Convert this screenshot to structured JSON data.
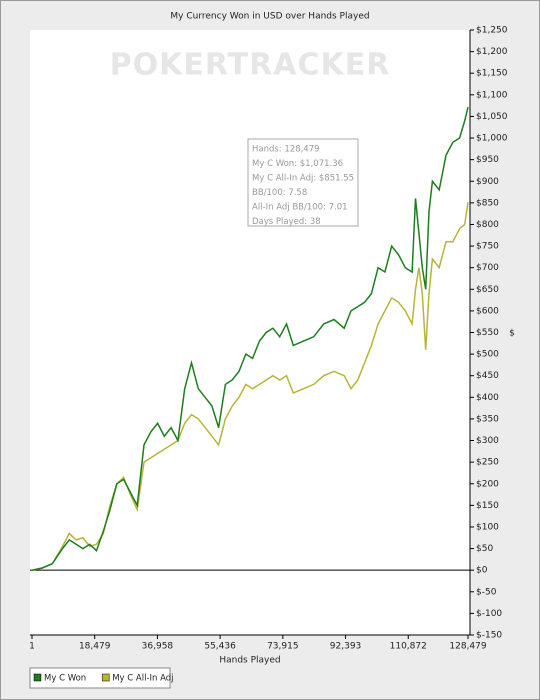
{
  "chart_data": {
    "type": "line",
    "title": "My Currency Won in USD over Hands Played",
    "watermark": "POKERTRACKER",
    "xlabel": "Hands Played",
    "ylabel": "$",
    "x": [
      1,
      3000,
      6000,
      9000,
      11000,
      13000,
      15000,
      17000,
      19000,
      21000,
      23000,
      25000,
      27000,
      29000,
      31000,
      33000,
      35000,
      37000,
      39000,
      41000,
      43000,
      45000,
      47000,
      49000,
      51000,
      53000,
      55000,
      57000,
      59000,
      61000,
      63000,
      65000,
      67000,
      69000,
      71000,
      73000,
      75000,
      77000,
      80000,
      83000,
      86000,
      89000,
      92000,
      94000,
      96000,
      98000,
      100000,
      102000,
      104000,
      106000,
      108000,
      110000,
      112000,
      113000,
      114000,
      115000,
      116000,
      117000,
      118000,
      120000,
      122000,
      124000,
      126000,
      127500,
      128479
    ],
    "series": [
      {
        "name": "My C Won",
        "color": "#1e7d1e",
        "values": [
          0,
          5,
          15,
          50,
          70,
          60,
          50,
          60,
          45,
          90,
          140,
          200,
          210,
          180,
          150,
          290,
          320,
          340,
          310,
          330,
          300,
          420,
          480,
          420,
          400,
          380,
          330,
          430,
          440,
          460,
          500,
          490,
          530,
          550,
          560,
          540,
          570,
          520,
          530,
          540,
          570,
          580,
          560,
          600,
          610,
          620,
          640,
          700,
          690,
          750,
          730,
          700,
          690,
          860,
          780,
          700,
          650,
          830,
          900,
          880,
          960,
          990,
          1000,
          1040,
          1071.36
        ]
      },
      {
        "name": "My C All-In Adj",
        "color": "#b8b43a",
        "values": [
          0,
          5,
          15,
          55,
          85,
          70,
          75,
          55,
          60,
          85,
          150,
          200,
          215,
          175,
          140,
          250,
          260,
          270,
          280,
          290,
          300,
          340,
          360,
          350,
          330,
          310,
          290,
          350,
          380,
          400,
          430,
          420,
          430,
          440,
          450,
          440,
          450,
          410,
          420,
          430,
          450,
          460,
          450,
          420,
          440,
          480,
          520,
          570,
          600,
          630,
          620,
          600,
          570,
          650,
          700,
          640,
          510,
          640,
          720,
          700,
          760,
          760,
          790,
          800,
          851.55
        ]
      }
    ],
    "xlim": [
      1,
      128479
    ],
    "xticks": [
      1,
      {
        "value": 18479,
        "label": "18,479"
      },
      {
        "value": 36958,
        "label": "36,958"
      },
      {
        "value": 55436,
        "label": "55,436"
      },
      {
        "value": 73915,
        "label": "73,915"
      },
      {
        "value": 92393,
        "label": "92,393"
      },
      {
        "value": 110872,
        "label": "110,872"
      },
      {
        "value": 128479,
        "label": "128,479"
      }
    ],
    "ylim": [
      -150,
      1250
    ],
    "yticks": [
      {
        "value": -150,
        "label": "$-150"
      },
      {
        "value": -100,
        "label": "$-100"
      },
      {
        "value": -50,
        "label": "$-50"
      },
      {
        "value": 0,
        "label": "$0"
      },
      {
        "value": 50,
        "label": "$50"
      },
      {
        "value": 100,
        "label": "$100"
      },
      {
        "value": 150,
        "label": "$150"
      },
      {
        "value": 200,
        "label": "$200"
      },
      {
        "value": 250,
        "label": "$250"
      },
      {
        "value": 300,
        "label": "$300"
      },
      {
        "value": 350,
        "label": "$350"
      },
      {
        "value": 400,
        "label": "$400"
      },
      {
        "value": 450,
        "label": "$450"
      },
      {
        "value": 500,
        "label": "$500"
      },
      {
        "value": 550,
        "label": "$550"
      },
      {
        "value": 600,
        "label": "$600"
      },
      {
        "value": 650,
        "label": "$650"
      },
      {
        "value": 700,
        "label": "$700"
      },
      {
        "value": 750,
        "label": "$750"
      },
      {
        "value": 800,
        "label": "$800"
      },
      {
        "value": 850,
        "label": "$850"
      },
      {
        "value": 900,
        "label": "$900"
      },
      {
        "value": 950,
        "label": "$950"
      },
      {
        "value": 1000,
        "label": "$1,000"
      },
      {
        "value": 1050,
        "label": "$1,050"
      },
      {
        "value": 1100,
        "label": "$1,100"
      },
      {
        "value": 1150,
        "label": "$1,150"
      },
      {
        "value": 1200,
        "label": "$1,200"
      },
      {
        "value": 1250,
        "label": "$1,250"
      }
    ],
    "grid": false,
    "tooltip": [
      "Hands: 128,479",
      "My C Won: $1,071.36",
      "My C All-In Adj: $851.55",
      "BB/100: 7.58",
      "All-In Adj BB/100: 7.01",
      "Days Played: 38"
    ]
  }
}
